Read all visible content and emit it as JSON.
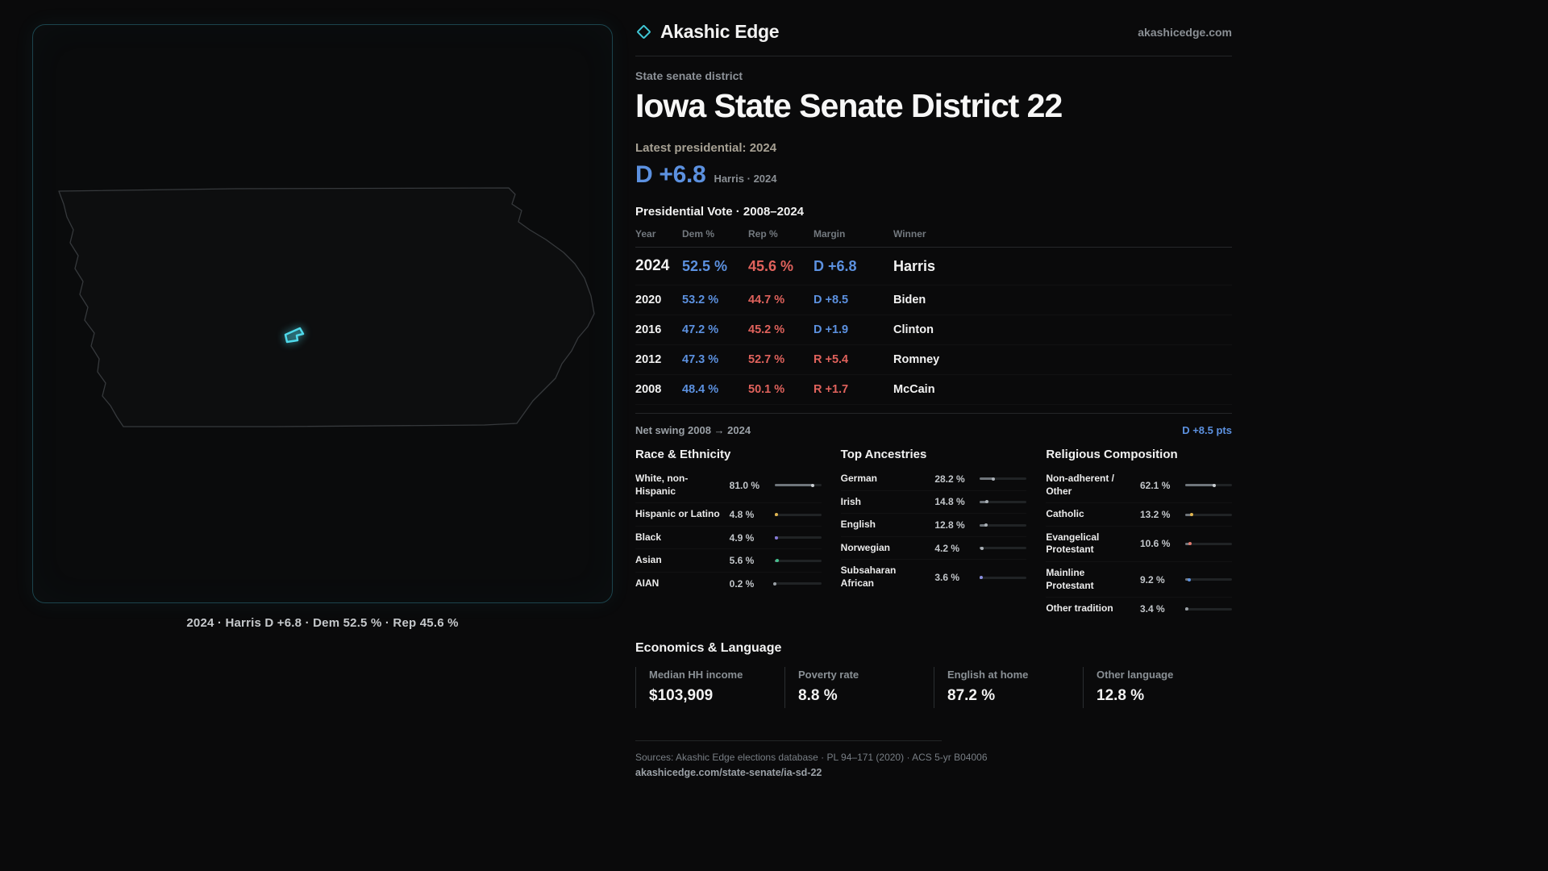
{
  "brand": {
    "name": "Akashic Edge",
    "site": "akashicedge.com"
  },
  "page": {
    "kicker": "State senate district",
    "title": "Iowa State Senate District 22",
    "latest_label": "Latest presidential: 2024",
    "headline_margin": "D +6.8",
    "headline_sub": "Harris · 2024"
  },
  "map": {
    "caption": "2024 · Harris D +6.8 · Dem 52.5 % · Rep 45.6 %"
  },
  "vote_table": {
    "title": "Presidential Vote · 2008–2024",
    "columns": [
      "Year",
      "Dem %",
      "Rep %",
      "Margin",
      "Winner"
    ],
    "rows": [
      {
        "year": "2024",
        "dem": "52.5 %",
        "rep": "45.6 %",
        "margin": "D +6.8",
        "winner": "Harris"
      },
      {
        "year": "2020",
        "dem": "53.2 %",
        "rep": "44.7 %",
        "margin": "D +8.5",
        "winner": "Biden"
      },
      {
        "year": "2016",
        "dem": "47.2 %",
        "rep": "45.2 %",
        "margin": "D +1.9",
        "winner": "Clinton"
      },
      {
        "year": "2012",
        "dem": "47.3 %",
        "rep": "52.7 %",
        "margin": "R +5.4",
        "winner": "Romney"
      },
      {
        "year": "2008",
        "dem": "48.4 %",
        "rep": "50.1 %",
        "margin": "R +1.7",
        "winner": "McCain"
      }
    ]
  },
  "swing": {
    "label": "Net swing 2008 → 2024",
    "value": "D +8.5 pts"
  },
  "demographics": {
    "race": {
      "title": "Race & Ethnicity",
      "rows": [
        {
          "label": "White, non-Hispanic",
          "value": "81.0 %",
          "pct": 81.0,
          "color": "#c9cdd1"
        },
        {
          "label": "Hispanic or Latino",
          "value": "4.8 %",
          "pct": 4.8,
          "color": "#e0b54f"
        },
        {
          "label": "Black",
          "value": "4.9 %",
          "pct": 4.9,
          "color": "#8579d8"
        },
        {
          "label": "Asian",
          "value": "5.6 %",
          "pct": 5.6,
          "color": "#43c18e"
        },
        {
          "label": "AIAN",
          "value": "0.2 %",
          "pct": 0.2,
          "color": "#9aa0a6"
        }
      ]
    },
    "ancestries": {
      "title": "Top Ancestries",
      "rows": [
        {
          "label": "German",
          "value": "28.2 %",
          "pct": 28.2,
          "color": "#aab0b6"
        },
        {
          "label": "Irish",
          "value": "14.8 %",
          "pct": 14.8,
          "color": "#aab0b6"
        },
        {
          "label": "English",
          "value": "12.8 %",
          "pct": 12.8,
          "color": "#aab0b6"
        },
        {
          "label": "Norwegian",
          "value": "4.2 %",
          "pct": 4.2,
          "color": "#aab0b6"
        },
        {
          "label": "Subsaharan African",
          "value": "3.6 %",
          "pct": 3.6,
          "color": "#8a8fe0"
        }
      ]
    },
    "religion": {
      "title": "Religious Composition",
      "rows": [
        {
          "label": "Non-adherent / Other",
          "value": "62.1 %",
          "pct": 62.1,
          "color": "#c9cdd1"
        },
        {
          "label": "Catholic",
          "value": "13.2 %",
          "pct": 13.2,
          "color": "#e0b54f"
        },
        {
          "label": "Evangelical Protestant",
          "value": "10.6 %",
          "pct": 10.6,
          "color": "#e0796e"
        },
        {
          "label": "Mainline Protestant",
          "value": "9.2 %",
          "pct": 9.2,
          "color": "#5f93e0"
        },
        {
          "label": "Other tradition",
          "value": "3.4 %",
          "pct": 3.4,
          "color": "#9aa0a6"
        }
      ]
    }
  },
  "economics": {
    "title": "Economics & Language",
    "stats": [
      {
        "label": "Median HH income",
        "value": "$103,909"
      },
      {
        "label": "Poverty rate",
        "value": "8.8 %"
      },
      {
        "label": "English at home",
        "value": "87.2 %"
      },
      {
        "label": "Other language",
        "value": "12.8 %"
      }
    ]
  },
  "footer": {
    "sources": "Sources: Akashic Edge elections database · PL 94–171 (2020) · ACS 5-yr B04006",
    "permalink": "akashicedge.com/state-senate/ia-sd-22"
  },
  "colors": {
    "dem": "#5c91e0",
    "rep": "#e0625c",
    "accent": "#49d7e9"
  }
}
